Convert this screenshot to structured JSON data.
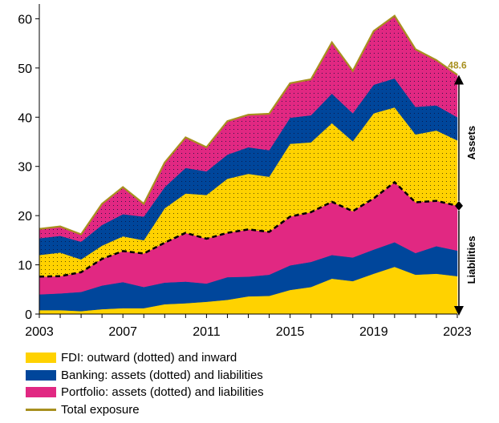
{
  "chart_data": {
    "type": "area",
    "x": [
      2003,
      2004,
      2005,
      2006,
      2007,
      2008,
      2009,
      2010,
      2011,
      2012,
      2013,
      2014,
      2015,
      2016,
      2017,
      2018,
      2019,
      2020,
      2021,
      2022,
      2023
    ],
    "x_ticks": [
      "2003",
      "2007",
      "2011",
      "2015",
      "2019",
      "2023"
    ],
    "y_ticks": [
      "0",
      "10",
      "20",
      "30",
      "40",
      "50",
      "60"
    ],
    "ylim": [
      0,
      63
    ],
    "series": [
      {
        "name": "FDI inward",
        "values": [
          0.8,
          0.8,
          0.6,
          1.0,
          1.2,
          1.2,
          2.0,
          2.2,
          2.5,
          2.9,
          3.6,
          3.7,
          4.9,
          5.5,
          7.2,
          6.7,
          8.2,
          9.6,
          8.0,
          8.2,
          7.7
        ]
      },
      {
        "name": "Banking liabilities",
        "values": [
          3.2,
          3.4,
          3.9,
          4.8,
          5.3,
          4.3,
          4.4,
          4.4,
          3.7,
          4.6,
          4.0,
          4.3,
          5.0,
          5.1,
          4.8,
          4.8,
          4.9,
          5.0,
          4.4,
          5.6,
          5.2
        ]
      },
      {
        "name": "Portfolio liabilities",
        "values": [
          3.6,
          3.5,
          4.0,
          5.4,
          6.3,
          6.8,
          8.1,
          9.9,
          9.1,
          9.0,
          9.6,
          8.7,
          9.9,
          10.1,
          10.8,
          9.4,
          10.4,
          12.2,
          10.3,
          9.2,
          9.1
        ]
      },
      {
        "name": "FDI outward",
        "values": [
          4.4,
          4.8,
          2.6,
          2.7,
          3.0,
          2.7,
          7.0,
          8.0,
          8.9,
          11.0,
          11.3,
          11.2,
          14.8,
          14.2,
          16.0,
          14.2,
          17.3,
          15.2,
          13.8,
          14.3,
          13.3
        ]
      },
      {
        "name": "Banking assets",
        "values": [
          3.4,
          3.4,
          3.6,
          4.2,
          4.5,
          4.8,
          4.3,
          5.2,
          4.8,
          4.9,
          5.4,
          5.4,
          5.3,
          5.5,
          6.0,
          5.7,
          5.8,
          5.9,
          5.6,
          5.1,
          4.7
        ]
      },
      {
        "name": "Portfolio assets",
        "values": [
          1.9,
          1.9,
          1.5,
          4.3,
          5.5,
          2.6,
          5.0,
          6.2,
          4.9,
          6.8,
          6.6,
          7.4,
          7.0,
          7.3,
          10.4,
          8.6,
          10.9,
          12.7,
          11.7,
          9.2,
          8.6
        ]
      }
    ],
    "total_exposure": [
      17.3,
      17.8,
      16.2,
      22.4,
      25.8,
      22.4,
      30.8,
      35.9,
      33.9,
      39.2,
      40.5,
      40.7,
      46.9,
      47.7,
      55.2,
      49.4,
      57.5,
      60.6,
      53.8,
      51.6,
      48.6
    ],
    "total_label": "48.6",
    "side_labels": {
      "assets": "Assets",
      "liabilities": "Liabilities"
    },
    "colors": {
      "fdi": "#ffd200",
      "banking": "#00469b",
      "portfolio": "#e12882",
      "total": "#a8901f"
    },
    "legend": [
      {
        "label": "FDI: outward (dotted) and inward",
        "color": "#ffd200",
        "kind": "swatch"
      },
      {
        "label": "Banking: assets (dotted) and liabilities",
        "color": "#00469b",
        "kind": "swatch"
      },
      {
        "label": "Portfolio: assets (dotted) and liabilities",
        "color": "#e12882",
        "kind": "swatch"
      },
      {
        "label": "Total exposure",
        "color": "#a8901f",
        "kind": "line"
      }
    ]
  }
}
